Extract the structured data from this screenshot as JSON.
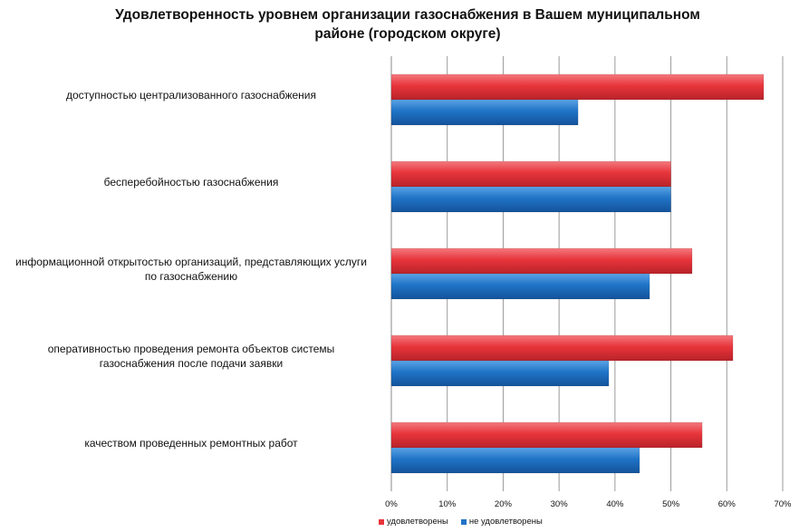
{
  "chart_data": {
    "type": "bar",
    "orientation": "horizontal",
    "title": "Удовлетворенность уровнем организации газоснабжения в Вашем муниципальном районе (городском округе)",
    "title_lines": [
      "Удовлетворенность уровнем организации газоснабжения в Вашем муниципальном",
      "районе (городском округе)"
    ],
    "categories": [
      [
        "доступностью  централизованного газоснабжения"
      ],
      [
        "бесперебойностью  газоснабжения"
      ],
      [
        "информационной открытостью организаций, представляющих услуги",
        "по газоснабжению"
      ],
      [
        "оперативностью проведения ремонта  объектов системы",
        "газоснабжения после подачи заявки"
      ],
      [
        "качеством проведенных ремонтных  работ"
      ]
    ],
    "series": [
      {
        "name": "удовлетворены",
        "color": "#e8343b",
        "values": [
          0.666,
          0.5,
          0.538,
          0.611,
          0.556
        ]
      },
      {
        "name": "не удовлетворены",
        "color": "#1f73c6",
        "values": [
          0.334,
          0.5,
          0.462,
          0.389,
          0.444
        ]
      }
    ],
    "xlim": [
      0,
      0.7
    ],
    "xticks": [
      0,
      0.1,
      0.2,
      0.3,
      0.4,
      0.5,
      0.6,
      0.7
    ],
    "xtick_labels": [
      "0%",
      "10%",
      "20%",
      "30%",
      "40%",
      "50%",
      "60%",
      "70%"
    ],
    "grid": true,
    "legend_position": "bottom"
  }
}
